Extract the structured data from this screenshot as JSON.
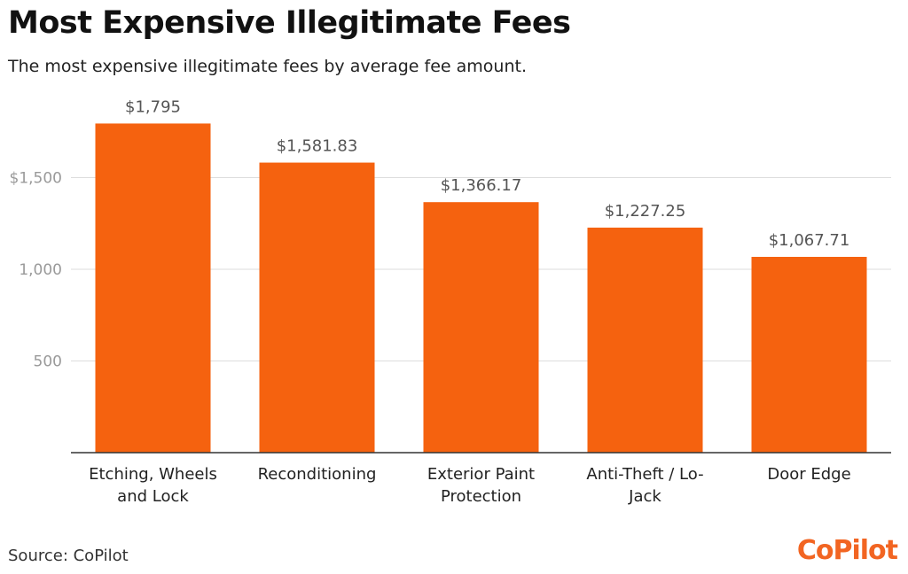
{
  "header": {
    "title": "Most Expensive Illegitimate Fees",
    "subtitle": "The most expensive illegitimate fees by average fee amount."
  },
  "footer": {
    "source": "Source: CoPilot",
    "logo": "CoPilot"
  },
  "colors": {
    "bar": "#f5620f",
    "grid": "#dddddd",
    "axis": "#333333",
    "tick_label": "#9a9a9a",
    "value_label": "#555555",
    "category_label": "#222222",
    "brand": "#f26522"
  },
  "chart_data": {
    "type": "bar",
    "title": "Most Expensive Illegitimate Fees",
    "subtitle": "The most expensive illegitimate fees by average fee amount.",
    "xlabel": "",
    "ylabel": "",
    "ylim": [
      0,
      1900
    ],
    "grid": true,
    "y_ticks": [
      {
        "value": 500,
        "label": "500"
      },
      {
        "value": 1000,
        "label": "1,000"
      },
      {
        "value": 1500,
        "label": "$1,500"
      }
    ],
    "categories": [
      [
        "Etching, Wheels",
        "and Lock"
      ],
      [
        "Reconditioning"
      ],
      [
        "Exterior Paint",
        "Protection"
      ],
      [
        "Anti-Theft / Lo-",
        "Jack"
      ],
      [
        "Door Edge"
      ]
    ],
    "values": [
      1795,
      1581.83,
      1366.17,
      1227.25,
      1067.71
    ],
    "value_labels": [
      "$1,795",
      "$1,581.83",
      "$1,366.17",
      "$1,227.25",
      "$1,067.71"
    ]
  }
}
